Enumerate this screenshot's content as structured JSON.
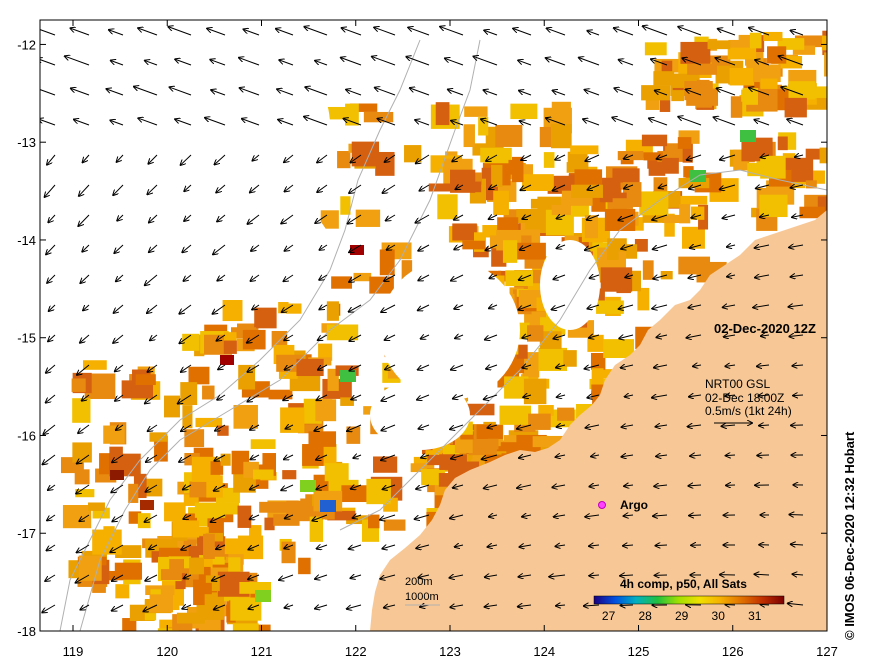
{
  "map": {
    "xaxis_ticks": [
      "119",
      "120",
      "121",
      "122",
      "123",
      "124",
      "125",
      "126",
      "127"
    ],
    "yaxis_ticks": [
      "-12",
      "-13",
      "-14",
      "-15",
      "-16",
      "-17",
      "-18"
    ],
    "lon_range": [
      118.65,
      127
    ],
    "lat_range": [
      -18,
      -11.75
    ],
    "land_color": "#f7c896",
    "isobath_color": "#b0b0b0"
  },
  "overlay": {
    "date_label": "02-Dec-2020 12Z",
    "wind_title": "NRT00 GSL",
    "wind_time": "02-Dec 18:00Z",
    "wind_scale": "0.5m/s (1kt 24h)",
    "argo_label": "Argo",
    "isobath_200": "200m",
    "isobath_1000": "1000m"
  },
  "colorbar": {
    "title": "4h comp, p50, All Sats",
    "ticks": [
      "27",
      "28",
      "29",
      "30",
      "31"
    ],
    "colors": [
      "#1a0080",
      "#0050e0",
      "#00b0c0",
      "#20c040",
      "#a0e000",
      "#f0e000",
      "#f5b000",
      "#e07000",
      "#c03000",
      "#7a0000"
    ]
  },
  "credit": "© IMOS 06-Dec-2020 12:32 Hobart",
  "chart_data": {
    "type": "heatmap",
    "title": "02-Dec-2020 12Z",
    "xlabel": "",
    "ylabel": "",
    "xlim": [
      118.65,
      127
    ],
    "ylim": [
      -18,
      -11.75
    ],
    "colorbar_range": [
      26.6,
      31.8
    ],
    "colorbar_label": "4h comp, p50, All Sats",
    "annotations": [
      "NRT00 GSL",
      "02-Dec 18:00Z",
      "0.5m/s (1kt 24h)",
      "Argo",
      "200m",
      "1000m"
    ],
    "argo_float": {
      "lon": 124.6,
      "lat": -16.7
    }
  }
}
